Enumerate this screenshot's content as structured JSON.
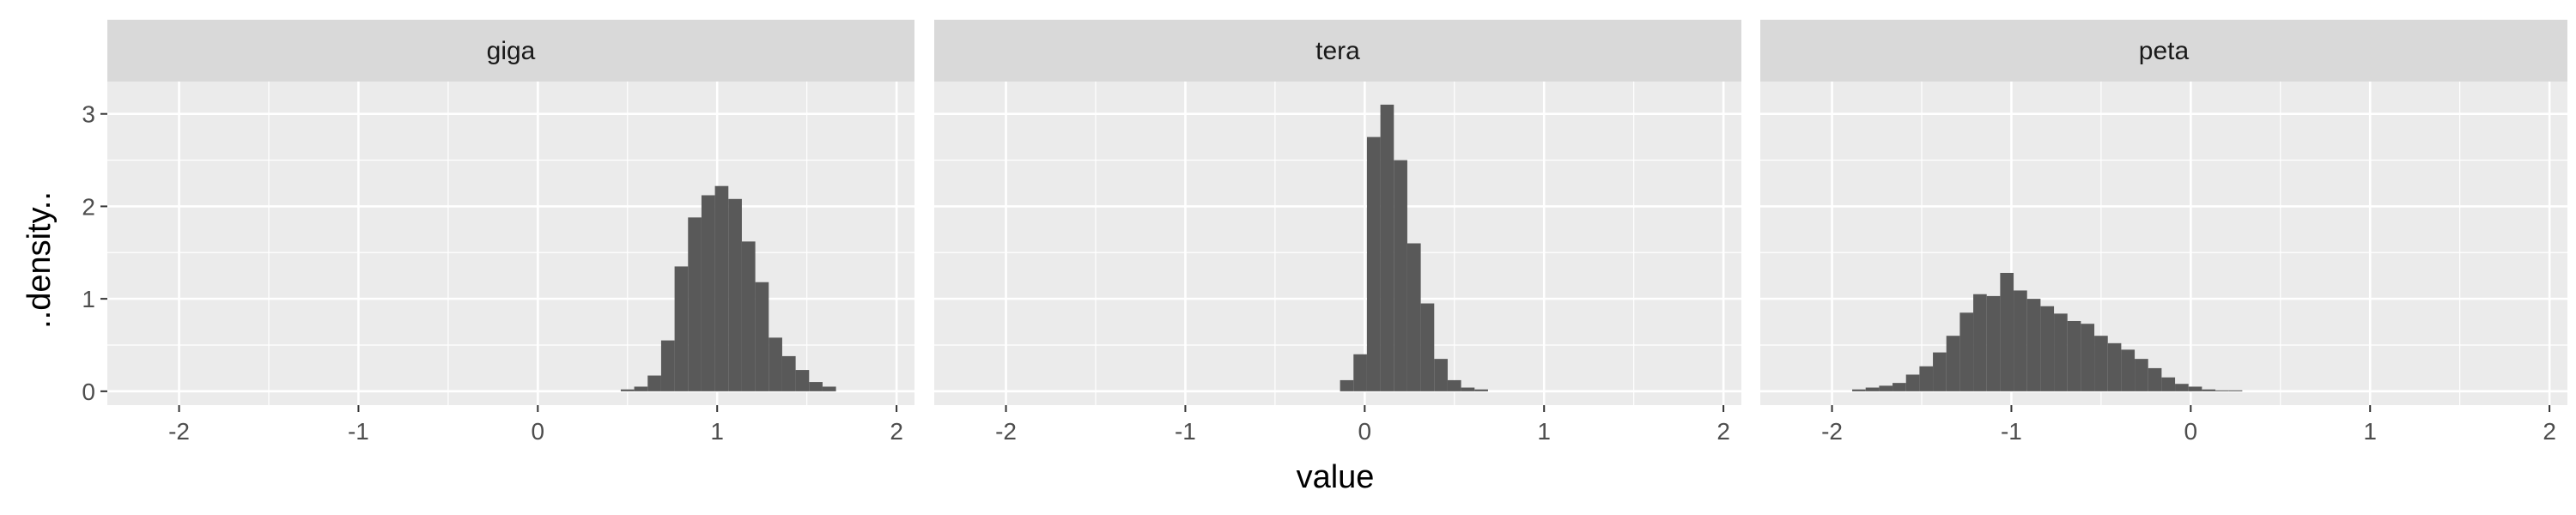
{
  "chart_data": {
    "type": "bar",
    "subtype": "faceted histogram",
    "xlabel": "value",
    "ylabel": "..density..",
    "xlim": [
      -2.4,
      2.1
    ],
    "ylim": [
      -0.15,
      3.35
    ],
    "x_ticks": [
      -2,
      -1,
      0,
      1,
      2
    ],
    "x_tick_labels": [
      "-2",
      "-1",
      "0",
      "1",
      "2"
    ],
    "y_ticks": [
      0,
      1,
      2,
      3
    ],
    "y_tick_labels": [
      "0",
      "1",
      "2",
      "3"
    ],
    "grid": true,
    "bin_width": 0.075,
    "colors": {
      "bar": "#595959",
      "panel_background": "#ebebeb",
      "strip_background": "#d9d9d9",
      "grid": "#ffffff"
    },
    "facets": [
      {
        "label": "giga",
        "x": [
          0.5,
          0.575,
          0.65,
          0.725,
          0.8,
          0.875,
          0.95,
          1.025,
          1.1,
          1.175,
          1.25,
          1.325,
          1.4,
          1.475,
          1.55,
          1.625
        ],
        "values": [
          0.02,
          0.05,
          0.17,
          0.55,
          1.35,
          1.88,
          2.12,
          2.22,
          2.08,
          1.62,
          1.18,
          0.58,
          0.38,
          0.23,
          0.1,
          0.05
        ]
      },
      {
        "label": "tera",
        "x": [
          -0.1,
          -0.025,
          0.05,
          0.125,
          0.2,
          0.275,
          0.35,
          0.425,
          0.5,
          0.575,
          0.65
        ],
        "values": [
          0.12,
          0.4,
          2.75,
          3.1,
          2.5,
          1.6,
          0.95,
          0.35,
          0.12,
          0.04,
          0.02
        ]
      },
      {
        "label": "peta",
        "x": [
          -1.85,
          -1.775,
          -1.7,
          -1.625,
          -1.55,
          -1.475,
          -1.4,
          -1.325,
          -1.25,
          -1.175,
          -1.1,
          -1.025,
          -0.95,
          -0.875,
          -0.8,
          -0.725,
          -0.65,
          -0.575,
          -0.5,
          -0.425,
          -0.35,
          -0.275,
          -0.2,
          -0.125,
          -0.05,
          0.025,
          0.1,
          0.175,
          0.25
        ],
        "values": [
          0.02,
          0.04,
          0.06,
          0.09,
          0.18,
          0.27,
          0.42,
          0.6,
          0.85,
          1.05,
          1.03,
          1.28,
          1.09,
          1.0,
          0.92,
          0.84,
          0.76,
          0.73,
          0.6,
          0.52,
          0.45,
          0.35,
          0.25,
          0.15,
          0.08,
          0.05,
          0.02,
          0.01,
          0.01
        ]
      }
    ]
  }
}
